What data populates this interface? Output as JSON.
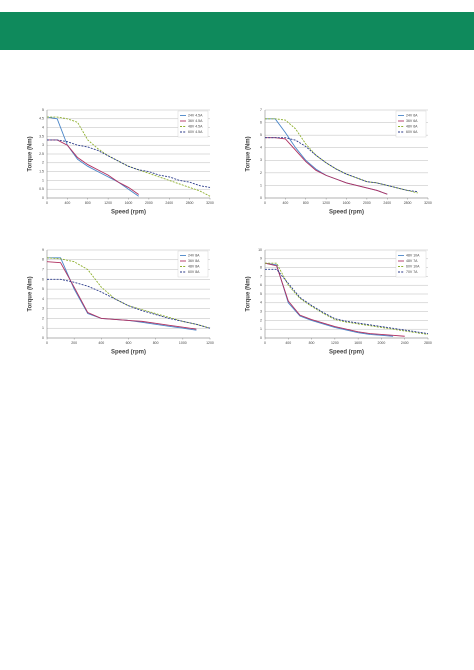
{
  "chart_data": [
    {
      "type": "line",
      "y_label": "Torque (Nm)",
      "x_label": "Speed (rpm)",
      "grid": true,
      "legend": "upper right",
      "x": [
        0,
        200,
        400,
        600,
        800,
        1000,
        1200,
        1400,
        1600,
        1800,
        2000,
        2200,
        2400,
        2600,
        2800,
        3000,
        3200
      ],
      "xlim": [
        0,
        3200
      ],
      "xticks": [
        0,
        400,
        800,
        1200,
        1600,
        2000,
        2400,
        2800,
        3200
      ],
      "ylim": [
        0,
        5
      ],
      "yticks": [
        0,
        0.5,
        1,
        1.5,
        2,
        2.5,
        3,
        3.5,
        4,
        4.5,
        5
      ],
      "series": [
        {
          "name": "24V 4.5A",
          "color": "#4a86c8",
          "style": "solid",
          "values": [
            4.6,
            4.5,
            3.0,
            2.2,
            1.8,
            1.5,
            1.2,
            0.9,
            0.5,
            0.1,
            null,
            null,
            null,
            null,
            null,
            null,
            null
          ]
        },
        {
          "name": "36V 4.5A",
          "color": "#b03060",
          "style": "solid",
          "values": [
            3.3,
            3.3,
            3.0,
            2.3,
            1.9,
            1.6,
            1.3,
            0.9,
            0.6,
            0.2,
            null,
            null,
            null,
            null,
            null,
            null,
            null
          ]
        },
        {
          "name": "48V 4.5A",
          "color": "#8fb030",
          "style": "dashed",
          "values": [
            4.6,
            4.6,
            4.5,
            4.3,
            3.3,
            2.8,
            2.4,
            2.1,
            1.8,
            1.6,
            1.4,
            1.2,
            1.0,
            0.8,
            0.6,
            0.4,
            0.1
          ]
        },
        {
          "name": "60V 4.5A",
          "color": "#2a3a8a",
          "style": "dashed",
          "values": [
            3.3,
            3.3,
            3.2,
            3.0,
            2.9,
            2.7,
            2.4,
            2.1,
            1.8,
            1.6,
            1.5,
            1.3,
            1.2,
            1.0,
            0.9,
            0.7,
            0.6
          ]
        }
      ]
    },
    {
      "type": "line",
      "y_label": "Torque (Nm)",
      "x_label": "Speed (rpm)",
      "grid": true,
      "legend": "upper right",
      "x": [
        0,
        200,
        400,
        600,
        800,
        1000,
        1200,
        1400,
        1600,
        1800,
        2000,
        2200,
        2400,
        2600,
        2800,
        3000,
        3200
      ],
      "xlim": [
        0,
        3200
      ],
      "xticks": [
        0,
        400,
        800,
        1200,
        1600,
        2000,
        2400,
        2800,
        3200
      ],
      "ylim": [
        0,
        7
      ],
      "yticks": [
        0,
        1,
        2,
        3,
        4,
        5,
        6,
        7
      ],
      "series": [
        {
          "name": "24V 6A",
          "color": "#4a86c8",
          "style": "solid",
          "values": [
            6.3,
            6.3,
            5.2,
            4.0,
            3.0,
            2.3,
            1.8,
            1.5,
            1.2,
            1.0,
            0.8,
            0.6,
            0.3,
            null,
            null,
            null,
            null
          ]
        },
        {
          "name": "36V 6A",
          "color": "#b03060",
          "style": "solid",
          "values": [
            4.8,
            4.8,
            4.7,
            3.8,
            2.9,
            2.2,
            1.8,
            1.5,
            1.2,
            1.0,
            0.8,
            0.6,
            0.3,
            null,
            null,
            null,
            null
          ]
        },
        {
          "name": "48V 6A",
          "color": "#8fb030",
          "style": "dashed",
          "values": [
            6.3,
            6.3,
            6.2,
            5.5,
            4.3,
            3.4,
            2.8,
            2.3,
            1.9,
            1.6,
            1.3,
            1.2,
            1.0,
            0.8,
            0.6,
            0.4,
            null
          ]
        },
        {
          "name": "60V 6A",
          "color": "#2a3a8a",
          "style": "dashed",
          "values": [
            4.8,
            4.8,
            4.8,
            4.6,
            4.1,
            3.4,
            2.8,
            2.3,
            1.9,
            1.6,
            1.3,
            1.2,
            1.0,
            0.8,
            0.6,
            0.5,
            null
          ]
        }
      ]
    },
    {
      "type": "line",
      "y_label": "Torque (Nm)",
      "x_label": "Speed (rpm)",
      "grid": true,
      "legend": "upper right",
      "x": [
        0,
        100,
        200,
        300,
        400,
        500,
        600,
        700,
        800,
        900,
        1000,
        1100,
        1200
      ],
      "xlim": [
        0,
        1200
      ],
      "xticks": [
        0,
        200,
        400,
        600,
        800,
        1000,
        1200
      ],
      "ylim": [
        0,
        9
      ],
      "yticks": [
        0,
        1,
        2,
        3,
        4,
        5,
        6,
        7,
        8,
        9
      ],
      "series": [
        {
          "name": "24V 8A",
          "color": "#4a86c8",
          "style": "solid",
          "values": [
            8.2,
            8.2,
            5.0,
            2.5,
            2.0,
            1.9,
            1.8,
            1.6,
            1.4,
            1.2,
            1.0,
            0.8,
            null
          ]
        },
        {
          "name": "36V 8A",
          "color": "#b03060",
          "style": "solid",
          "values": [
            7.8,
            7.7,
            5.2,
            2.6,
            2.0,
            1.9,
            1.8,
            1.7,
            1.5,
            1.3,
            1.1,
            0.9,
            null
          ]
        },
        {
          "name": "48V 8A",
          "color": "#8fb030",
          "style": "dashed",
          "values": [
            8.2,
            8.1,
            7.8,
            7.0,
            5.2,
            4.0,
            3.3,
            2.9,
            2.5,
            2.1,
            1.7,
            1.4,
            1.0
          ]
        },
        {
          "name": "60V 8A",
          "color": "#2a3a8a",
          "style": "dashed",
          "values": [
            6.0,
            6.0,
            5.7,
            5.3,
            4.7,
            4.0,
            3.3,
            2.8,
            2.4,
            2.0,
            1.7,
            1.4,
            1.0
          ]
        }
      ]
    },
    {
      "type": "line",
      "y_label": "Torque (Nm)",
      "x_label": "Speed (rpm)",
      "grid": true,
      "legend": "upper right",
      "x": [
        0,
        200,
        400,
        600,
        800,
        1000,
        1200,
        1400,
        1600,
        1800,
        2000,
        2200,
        2400,
        2600,
        2800
      ],
      "xlim": [
        0,
        2800
      ],
      "xticks": [
        0,
        400,
        800,
        1200,
        1600,
        2000,
        2400,
        2800
      ],
      "ylim": [
        0,
        10
      ],
      "yticks": [
        0,
        1,
        2,
        3,
        4,
        5,
        6,
        7,
        8,
        9,
        10
      ],
      "series": [
        {
          "name": "48V 10A",
          "color": "#4a86c8",
          "style": "solid",
          "values": [
            8.5,
            8.3,
            4.0,
            2.5,
            2.0,
            1.6,
            1.2,
            0.9,
            0.6,
            0.4,
            0.3,
            0.2,
            null,
            null,
            null
          ]
        },
        {
          "name": "48V 7A",
          "color": "#b03060",
          "style": "solid",
          "values": [
            8.5,
            8.2,
            4.2,
            2.6,
            2.1,
            1.7,
            1.3,
            1.0,
            0.7,
            0.5,
            0.4,
            0.3,
            0.2,
            null,
            null
          ]
        },
        {
          "name": "60V 10A",
          "color": "#8fb030",
          "style": "dashed",
          "values": [
            8.5,
            8.5,
            6.0,
            4.5,
            3.6,
            2.8,
            2.1,
            1.8,
            1.6,
            1.4,
            1.2,
            1.0,
            0.8,
            0.6,
            0.4
          ]
        },
        {
          "name": "70V 7A",
          "color": "#2a3a8a",
          "style": "dashed",
          "values": [
            7.8,
            7.8,
            6.2,
            4.6,
            3.7,
            2.9,
            2.2,
            1.9,
            1.7,
            1.5,
            1.3,
            1.1,
            0.9,
            0.7,
            0.5
          ]
        }
      ]
    }
  ]
}
